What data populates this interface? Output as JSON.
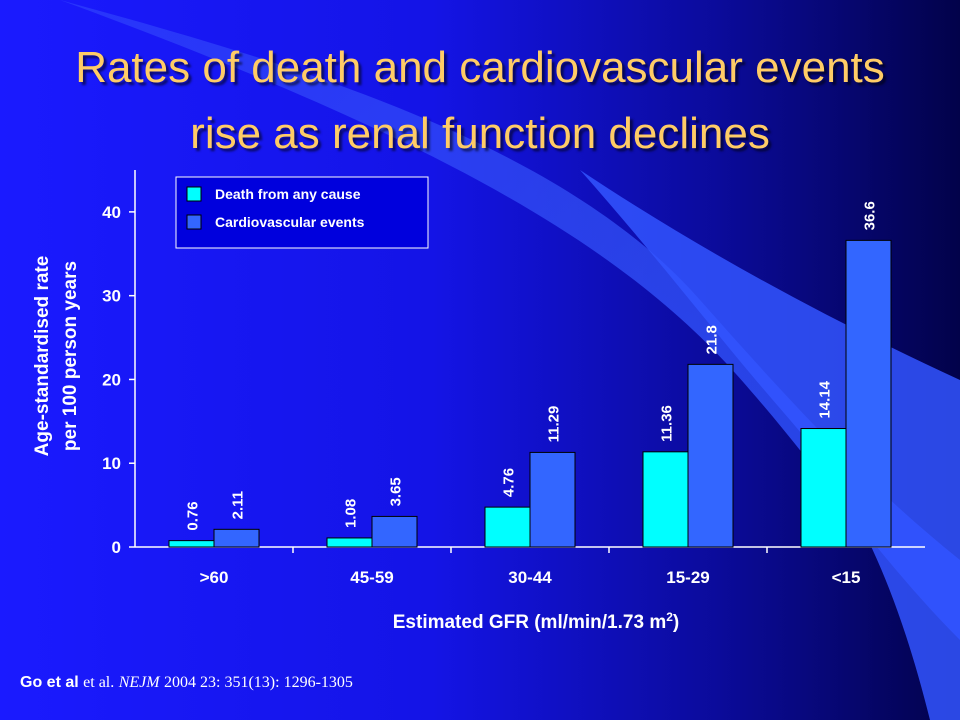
{
  "slide": {
    "title_line1": "Rates of death and cardiovascular events",
    "title_line2": "rise as renal function declines",
    "citation": {
      "author": "Go et al",
      "etal": "et al.",
      "journal": "NEJM",
      "details": "2004  23: 351(13): 1296-1305"
    }
  },
  "colors": {
    "death": "#00ffff",
    "cardio": "#3366ff",
    "text": "#ffffff",
    "title": "#ffcc66"
  },
  "chart_data": {
    "type": "bar",
    "categories": [
      ">60",
      "45-59",
      "30-44",
      "15-29",
      "<15"
    ],
    "series": [
      {
        "name": "Death from any cause",
        "values": [
          0.76,
          1.08,
          4.76,
          11.36,
          14.14
        ]
      },
      {
        "name": "Cardiovascular events",
        "values": [
          2.11,
          3.65,
          11.29,
          21.8,
          36.6
        ]
      }
    ],
    "ylabel_line1": "Age-standardised rate",
    "ylabel_line2": "per 100 person years",
    "xlabel": "Estimated GFR (ml/min/1.73 m",
    "xlabel_sup": "2",
    "xlabel_close": ")",
    "ylim": [
      0,
      45
    ],
    "yticks": [
      0,
      10,
      20,
      30,
      40
    ],
    "grid": false,
    "legend_position": "top-left"
  }
}
